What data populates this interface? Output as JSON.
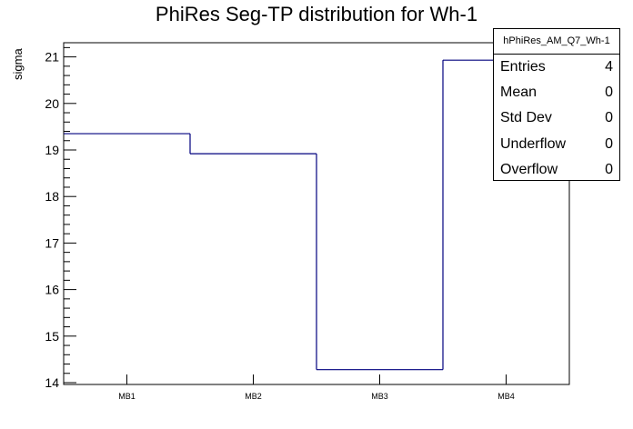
{
  "chart_data": {
    "type": "histogram-step",
    "title": "PhiRes Seg-TP distribution for Wh-1",
    "xlabel": "",
    "ylabel": "sigma",
    "categories": [
      "MB1",
      "MB2",
      "MB3",
      "MB4"
    ],
    "values": [
      19.35,
      18.92,
      14.28,
      20.93
    ],
    "ylim": [
      14,
      21.3
    ],
    "yticks": [
      14,
      15,
      16,
      17,
      18,
      19,
      20,
      21
    ],
    "line_color": "#00007f",
    "stats_box": {
      "name": "hPhiRes_AM_Q7_Wh-1",
      "rows": [
        {
          "label": "Entries",
          "value": "4"
        },
        {
          "label": "Mean",
          "value": "0"
        },
        {
          "label": "Std Dev",
          "value": "0"
        },
        {
          "label": "Underflow",
          "value": "0"
        },
        {
          "label": "Overflow",
          "value": "0"
        }
      ]
    }
  }
}
